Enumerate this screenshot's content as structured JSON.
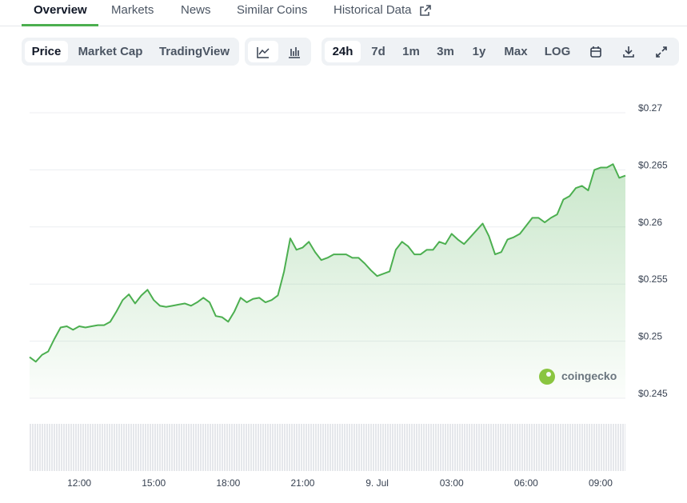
{
  "tabs": [
    "Overview",
    "Markets",
    "News",
    "Similar Coins",
    "Historical Data"
  ],
  "toolbar": {
    "views": [
      "Price",
      "Market Cap",
      "TradingView"
    ],
    "ranges": [
      "24h",
      "7d",
      "1m",
      "3m",
      "1y",
      "Max",
      "LOG"
    ]
  },
  "watermark": "coingecko",
  "chart_data": {
    "type": "line",
    "categories": [
      null,
      null,
      null,
      null,
      null,
      null,
      null,
      null,
      "12:00",
      null,
      null,
      null,
      null,
      null,
      null,
      null,
      null,
      null,
      null,
      null,
      "15:00",
      null,
      null,
      null,
      null,
      null,
      null,
      null,
      null,
      null,
      null,
      null,
      "18:00",
      null,
      null,
      null,
      null,
      null,
      null,
      null,
      null,
      null,
      null,
      null,
      "21:00",
      null,
      null,
      null,
      null,
      null,
      null,
      null,
      null,
      null,
      null,
      null,
      "9. Jul",
      null,
      null,
      null,
      null,
      null,
      null,
      null,
      null,
      null,
      null,
      null,
      "03:00",
      null,
      null,
      null,
      null,
      null,
      null,
      null,
      null,
      null,
      null,
      null,
      "06:00",
      null,
      null,
      null,
      null,
      null,
      null,
      null,
      null,
      null,
      null,
      null,
      "09:00",
      null,
      null,
      null,
      null
    ],
    "series": [
      {
        "color": "#4caf50",
        "values": [
          0.2486,
          0.2482,
          0.2488,
          0.2491,
          0.2502,
          0.2512,
          0.2513,
          0.251,
          0.2513,
          0.2512,
          0.2513,
          0.2514,
          0.2514,
          0.2517,
          0.2526,
          0.2536,
          0.2541,
          0.2533,
          0.254,
          0.2545,
          0.2536,
          0.2531,
          0.253,
          0.2531,
          0.2532,
          0.2533,
          0.2531,
          0.2534,
          0.2538,
          0.2534,
          0.2522,
          0.2521,
          0.2517,
          0.2526,
          0.2538,
          0.2534,
          0.2537,
          0.2538,
          0.2534,
          0.2536,
          0.254,
          0.2561,
          0.259,
          0.258,
          0.2582,
          0.2587,
          0.2578,
          0.2571,
          0.2573,
          0.2576,
          0.2576,
          0.2576,
          0.2573,
          0.2573,
          0.2568,
          0.2562,
          0.2557,
          0.2559,
          0.2561,
          0.258,
          0.2587,
          0.2583,
          0.2576,
          0.2576,
          0.258,
          0.258,
          0.2587,
          0.2585,
          0.2594,
          0.2589,
          0.2585,
          0.2591,
          0.2597,
          0.2603,
          0.2592,
          0.2576,
          0.2578,
          0.2589,
          0.2591,
          0.2594,
          0.2601,
          0.2608,
          0.2608,
          0.2604,
          0.2608,
          0.2611,
          0.2624,
          0.2627,
          0.2634,
          0.2636,
          0.2632,
          0.265,
          0.2652,
          0.2652,
          0.2655,
          0.2643,
          0.2645
        ]
      }
    ],
    "ylim": [
      0.245,
      0.27
    ],
    "yticks": [
      {
        "value": 0.245,
        "label": "$0.245"
      },
      {
        "value": 0.25,
        "label": "$0.25"
      },
      {
        "value": 0.255,
        "label": "$0.255"
      },
      {
        "value": 0.26,
        "label": "$0.26"
      },
      {
        "value": 0.265,
        "label": "$0.265"
      },
      {
        "value": 0.27,
        "label": "$0.27"
      }
    ],
    "grid": true
  }
}
